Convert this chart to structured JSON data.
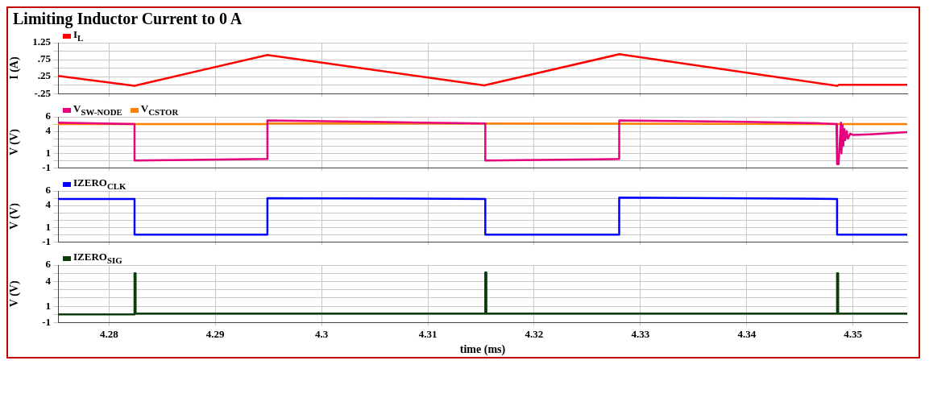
{
  "chart_data": [
    {
      "type": "line",
      "title": "Limiting Inductor Current to 0 A",
      "ylabel": "I (A)",
      "legend": "top left",
      "grid": true,
      "tick_labels": "y",
      "xlim": [
        4.2752,
        4.3551
      ],
      "xticks": [
        4.28,
        4.29,
        4.3,
        4.31,
        4.32,
        4.33,
        4.34,
        4.35
      ],
      "ylim": [
        -0.25,
        1.25
      ],
      "yticks": [
        {
          "value": -0.25,
          "label": "-.25"
        },
        {
          "value": 0,
          "label": null
        },
        {
          "value": 0.25,
          "label": ".25"
        },
        {
          "value": 0.5,
          "label": null
        },
        {
          "value": 0.75,
          "label": ".75"
        },
        {
          "value": 1,
          "label": null
        },
        1.25
      ],
      "series": [
        {
          "name": "I$_{L}$",
          "color": "#ff0000",
          "x": [
            4.2752,
            4.2824,
            4.2949,
            4.3153,
            4.328,
            4.3485,
            4.3487,
            4.3551
          ],
          "values": [
            0.27,
            -0.02,
            0.89,
            -0.01,
            0.91,
            -0.02,
            0.01,
            0.01
          ]
        }
      ]
    },
    {
      "type": "line",
      "ylabel": "V (V)",
      "legend": "top left",
      "grid": true,
      "tick_labels": "y",
      "xlim": [
        4.2752,
        4.3551
      ],
      "xticks": [
        4.28,
        4.29,
        4.3,
        4.31,
        4.32,
        4.33,
        4.34,
        4.35
      ],
      "ylim": [
        -1,
        6
      ],
      "yticks": [
        -1,
        {
          "value": 0,
          "label": null
        },
        1,
        {
          "value": 2,
          "label": null
        },
        {
          "value": 3,
          "label": null
        },
        4,
        {
          "value": 5,
          "label": null
        },
        6
      ],
      "series": [
        {
          "name": "V$_{SW-NODE}$",
          "color": "#e6007e",
          "x": [
            4.2752,
            4.2824,
            4.2824,
            4.2949,
            4.2949,
            4.305,
            4.3154,
            4.3154,
            4.328,
            4.328,
            4.34,
            4.347,
            4.34844,
            4.3485,
            4.34864,
            4.34886,
            4.34891,
            4.34902,
            4.34908,
            4.34919,
            4.34927,
            4.34941,
            4.34952,
            4.34974,
            4.35002,
            4.35168,
            4.3551
          ],
          "values": [
            5.2,
            5.0,
            0.0,
            0.2,
            5.5,
            5.3,
            5.1,
            0.0,
            0.2,
            5.5,
            5.3,
            5.1,
            5.0,
            -0.5,
            -0.5,
            5.2,
            1.0,
            4.8,
            2.0,
            4.3,
            2.8,
            4.0,
            3.0,
            3.7,
            3.5,
            3.6,
            3.9
          ]
        },
        {
          "name": "V$_{CSTOR}$",
          "color": "#ff8000",
          "x": [
            4.2752,
            4.2949,
            4.2949,
            4.3551
          ],
          "values": [
            5.0,
            5.0,
            5.1,
            5.0
          ]
        }
      ]
    },
    {
      "type": "line",
      "ylabel": "V (V)",
      "legend": "top left",
      "grid": true,
      "tick_labels": "y",
      "xlim": [
        4.2752,
        4.3551
      ],
      "xticks": [
        4.28,
        4.29,
        4.3,
        4.31,
        4.32,
        4.33,
        4.34,
        4.35
      ],
      "ylim": [
        -1,
        6
      ],
      "yticks": [
        -1,
        {
          "value": 0,
          "label": null
        },
        1,
        {
          "value": 2,
          "label": null
        },
        {
          "value": 3,
          "label": null
        },
        4,
        {
          "value": 5,
          "label": null
        },
        6
      ],
      "series": [
        {
          "name": "IZERO$_{CLK}$",
          "color": "#0000ff",
          "x": [
            4.2752,
            4.2824,
            4.2824,
            4.2949,
            4.2949,
            4.3154,
            4.3154,
            4.328,
            4.328,
            4.3485,
            4.3485,
            4.3551
          ],
          "values": [
            4.9,
            4.9,
            0.0,
            0.0,
            5.0,
            4.9,
            0.0,
            0.0,
            5.1,
            4.9,
            0.0,
            0.0
          ]
        }
      ]
    },
    {
      "type": "line",
      "ylabel": "V (V)",
      "xlabel": "time (ms)",
      "legend": "top left",
      "grid": true,
      "xlim": [
        4.2752,
        4.3551
      ],
      "xticks": [
        4.28,
        4.29,
        4.3,
        4.31,
        4.32,
        4.33,
        4.34,
        4.35
      ],
      "ylim": [
        -1,
        6
      ],
      "yticks": [
        -1,
        {
          "value": 0,
          "label": null
        },
        1,
        {
          "value": 2,
          "label": null
        },
        {
          "value": 3,
          "label": null
        },
        4,
        {
          "value": 5,
          "label": null
        },
        6
      ],
      "series": [
        {
          "name": "IZERO$_{SIG}$",
          "color": "#0b3d0b",
          "x": [
            4.2752,
            4.2824,
            4.2824,
            4.2825,
            4.2825,
            4.3154,
            4.3154,
            4.3155,
            4.3155,
            4.3485,
            4.3485,
            4.3486,
            4.3486,
            4.3551
          ],
          "values": [
            0.0,
            0.0,
            5.0,
            5.0,
            0.1,
            0.1,
            5.1,
            5.1,
            0.1,
            0.1,
            5.0,
            5.0,
            0.1,
            0.1
          ]
        }
      ]
    }
  ]
}
